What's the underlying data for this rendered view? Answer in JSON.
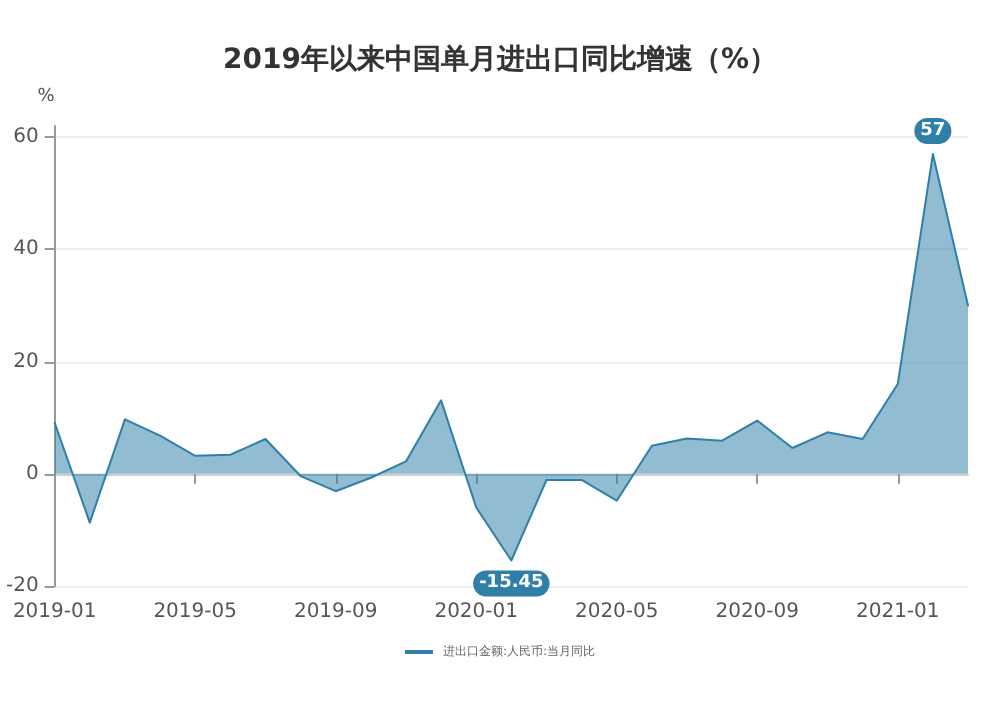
{
  "chart_data": {
    "type": "area",
    "title": "2019年以来中国单月进出口同比增速（%）",
    "ylabel": "%",
    "categories": [
      "2019-01",
      null,
      null,
      null,
      "2019-05",
      null,
      null,
      null,
      "2019-09",
      null,
      null,
      null,
      "2020-01",
      null,
      null,
      null,
      "2020-05",
      null,
      null,
      null,
      "2020-09",
      null,
      null,
      null,
      "2021-01",
      null,
      null
    ],
    "series": [
      {
        "name": "进出口金额:人民币:当月同比",
        "color": "#2f7fa8",
        "values": [
          9.1,
          -8.7,
          9.7,
          6.8,
          3.2,
          3.4,
          6.2,
          -0.4,
          -3.1,
          -0.7,
          2.2,
          13.1,
          -6,
          -15.45,
          -1.1,
          -1.1,
          -4.8,
          5,
          6.3,
          5.9,
          9.5,
          4.6,
          7.4,
          6.2,
          16,
          57,
          30
        ],
        "value_labels": [
          null,
          null,
          null,
          null,
          null,
          null,
          null,
          null,
          null,
          null,
          null,
          null,
          null,
          "-15.45",
          null,
          null,
          null,
          null,
          null,
          null,
          null,
          null,
          null,
          null,
          null,
          "57",
          null
        ]
      }
    ],
    "ylim": [
      -20,
      62
    ],
    "yticks": [
      -20,
      0,
      20,
      40,
      60
    ],
    "grid": "y",
    "legend": "bottom",
    "marker": "none"
  }
}
